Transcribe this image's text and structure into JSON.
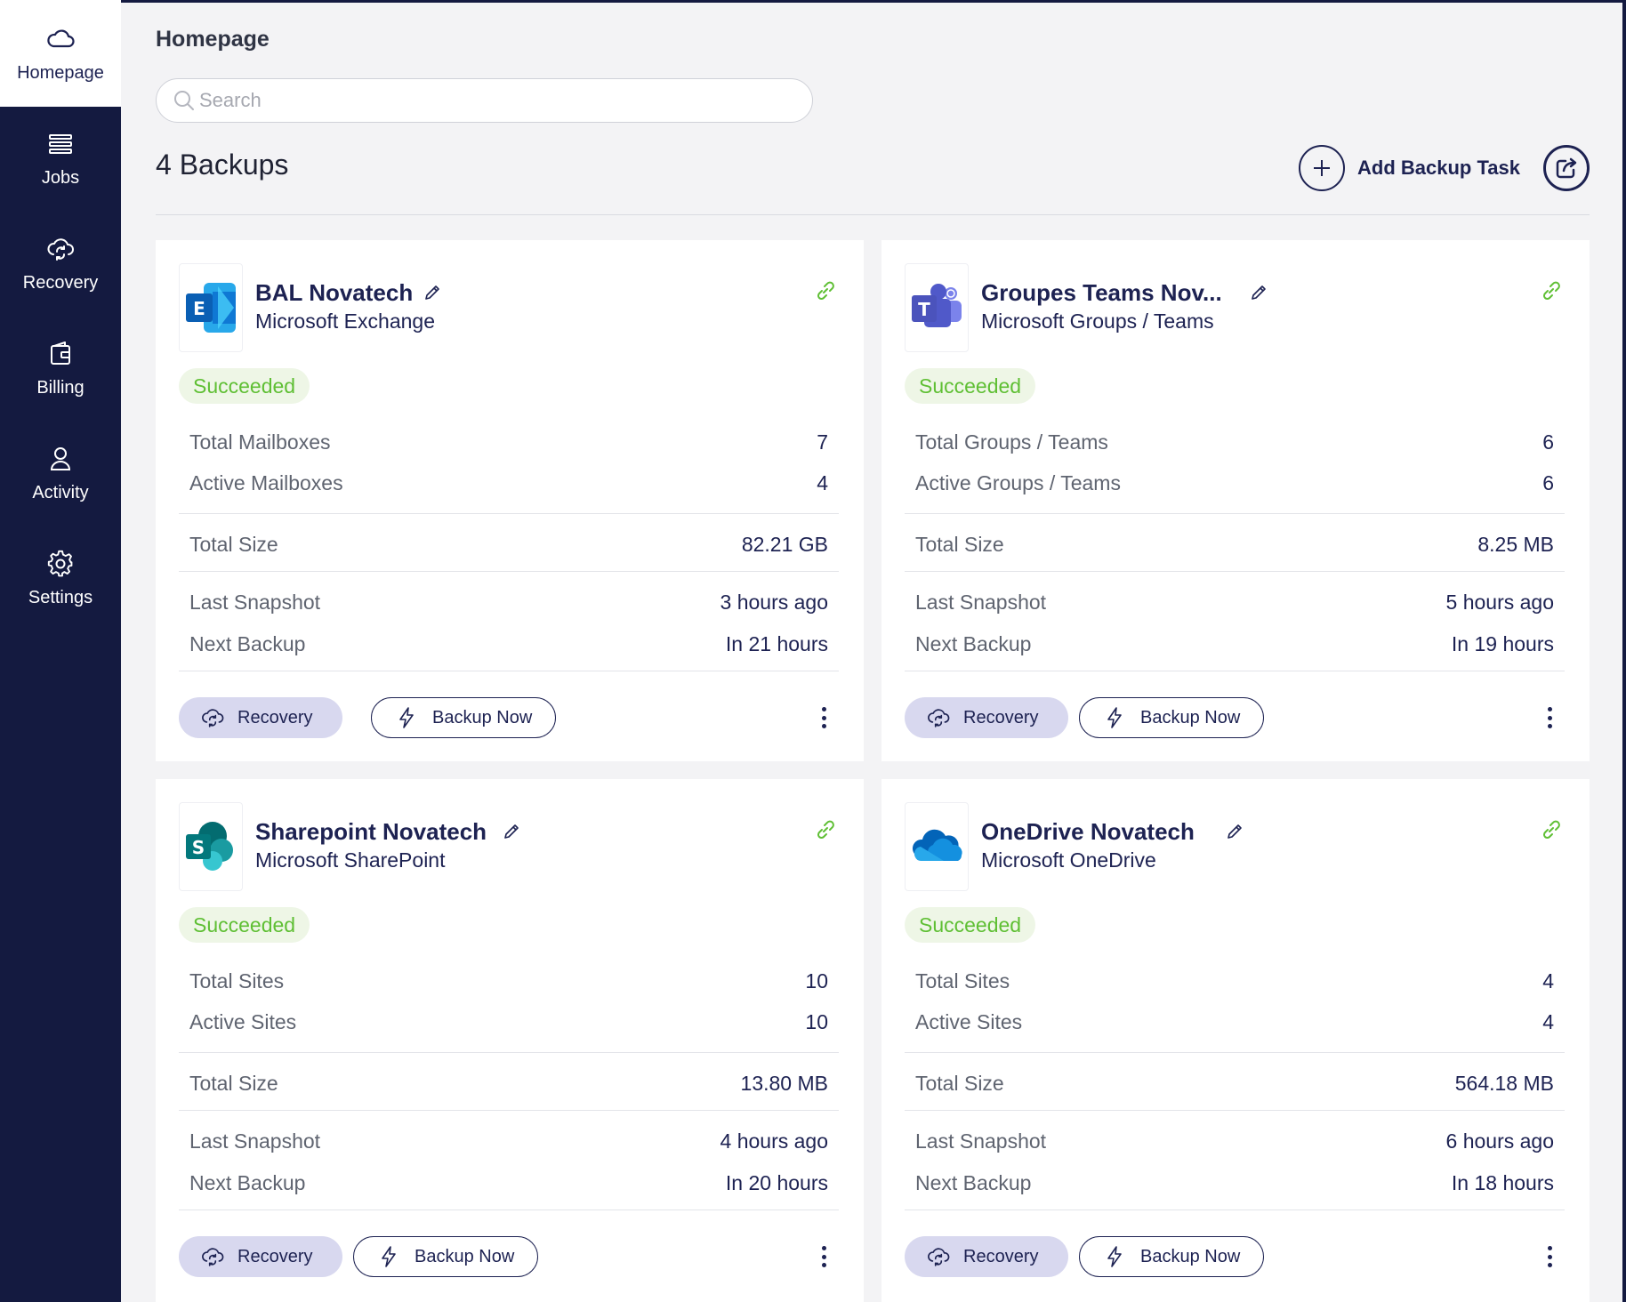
{
  "nav": {
    "items": [
      {
        "label": "Homepage",
        "icon": "cloud-icon",
        "active": true
      },
      {
        "label": "Jobs",
        "icon": "list-icon"
      },
      {
        "label": "Recovery",
        "icon": "cloud-sync-icon"
      },
      {
        "label": "Billing",
        "icon": "wallet-icon"
      },
      {
        "label": "Activity",
        "icon": "user-icon"
      },
      {
        "label": "Settings",
        "icon": "gear-icon"
      }
    ]
  },
  "header": {
    "title": "Homepage",
    "search_placeholder": "Search",
    "count_label": "4 Backups",
    "add_task_label": "Add Backup Task"
  },
  "colors": {
    "sidebar": "#141a40",
    "accent": "#1d2252",
    "success_text": "#5fbf34",
    "success_bg": "#eef6e6",
    "recovery_button_bg": "#d8d8ef"
  },
  "cards": [
    {
      "title": "BAL Novatech",
      "service": "Microsoft Exchange",
      "icon": "exchange-icon",
      "status": "Succeeded",
      "total_label": "Total Mailboxes",
      "total_value": "7",
      "active_label": "Active Mailboxes",
      "active_value": "4",
      "size_label": "Total Size",
      "size_value": "82.21 GB",
      "snapshot_label": "Last Snapshot",
      "snapshot_value": "3 hours ago",
      "next_label": "Next Backup",
      "next_value": "In 21 hours",
      "recovery_label": "Recovery",
      "backup_label": "Backup Now"
    },
    {
      "title": "Groupes Teams Nov...",
      "service": "Microsoft Groups / Teams",
      "icon": "teams-icon",
      "status": "Succeeded",
      "total_label": "Total Groups / Teams",
      "total_value": "6",
      "active_label": "Active Groups / Teams",
      "active_value": "6",
      "size_label": "Total Size",
      "size_value": "8.25 MB",
      "snapshot_label": "Last Snapshot",
      "snapshot_value": "5 hours ago",
      "next_label": "Next Backup",
      "next_value": "In 19 hours",
      "recovery_label": "Recovery",
      "backup_label": "Backup Now"
    },
    {
      "title": "Sharepoint Novatech",
      "service": "Microsoft SharePoint",
      "icon": "sharepoint-icon",
      "status": "Succeeded",
      "total_label": "Total Sites",
      "total_value": "10",
      "active_label": "Active Sites",
      "active_value": "10",
      "size_label": "Total Size",
      "size_value": "13.80 MB",
      "snapshot_label": "Last Snapshot",
      "snapshot_value": "4 hours ago",
      "next_label": "Next Backup",
      "next_value": "In 20 hours",
      "recovery_label": "Recovery",
      "backup_label": "Backup Now"
    },
    {
      "title": "OneDrive Novatech",
      "service": "Microsoft OneDrive",
      "icon": "onedrive-icon",
      "status": "Succeeded",
      "total_label": "Total Sites",
      "total_value": "4",
      "active_label": "Active Sites",
      "active_value": "4",
      "size_label": "Total Size",
      "size_value": "564.18 MB",
      "snapshot_label": "Last Snapshot",
      "snapshot_value": "6 hours ago",
      "next_label": "Next Backup",
      "next_value": "In 18 hours",
      "recovery_label": "Recovery",
      "backup_label": "Backup Now"
    }
  ]
}
